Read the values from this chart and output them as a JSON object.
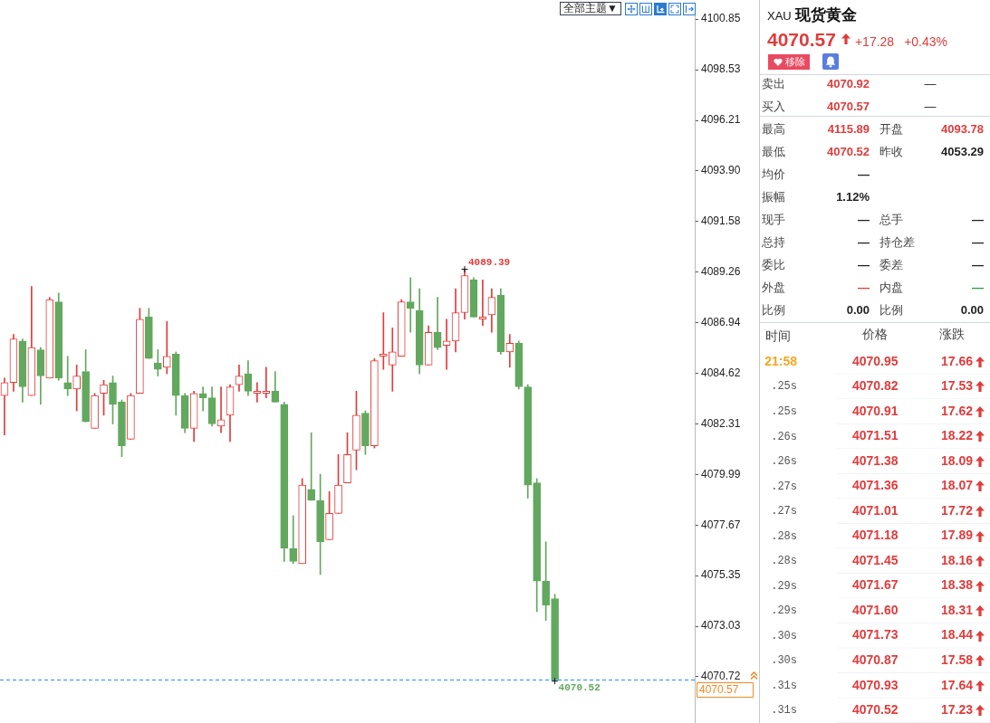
{
  "chart_data": [
    {
      "type": "candlestick",
      "categories": [
        null,
        null,
        null,
        null,
        null,
        null,
        null,
        null,
        null,
        null,
        null,
        null,
        null,
        null,
        null,
        null,
        null,
        null,
        null,
        null,
        null,
        null,
        null,
        null,
        null,
        null,
        null,
        null,
        null,
        null,
        null,
        null,
        null,
        null,
        null,
        null,
        null,
        null,
        null,
        null,
        null,
        null,
        null,
        null,
        null,
        null,
        null,
        null,
        null,
        null,
        null,
        null,
        null,
        null,
        null,
        null,
        null,
        null,
        null,
        null,
        null,
        null,
        null,
        null,
        null,
        null,
        null,
        null,
        null,
        null,
        null,
        null,
        null,
        null,
        null,
        null,
        null
      ],
      "ohlc": [
        [
          4083.6,
          4084.4,
          4081.8,
          4084.2
        ],
        [
          4084.2,
          4086.4,
          4083.8,
          4086.2
        ],
        [
          4086.1,
          4086.2,
          4083.3,
          4084.0
        ],
        [
          4083.6,
          4088.6,
          4083.6,
          4085.8
        ],
        [
          4085.7,
          4085.8,
          4083.2,
          4084.5
        ],
        [
          4084.4,
          4088.1,
          4084.4,
          4088.0
        ],
        [
          4087.9,
          4088.3,
          4084.3,
          4084.4
        ],
        [
          4084.2,
          4085.4,
          4083.6,
          4083.9
        ],
        [
          4083.9,
          4085.0,
          4082.9,
          4084.5
        ],
        [
          4084.7,
          4085.7,
          4082.4,
          4082.4
        ],
        [
          4082.1,
          4083.7,
          4082.1,
          4083.6
        ],
        [
          4083.7,
          4084.3,
          4082.7,
          4084.1
        ],
        [
          4084.2,
          4084.5,
          4082.3,
          4083.2
        ],
        [
          4083.3,
          4083.4,
          4080.8,
          4081.3
        ],
        [
          4081.6,
          4083.7,
          4081.6,
          4083.6
        ],
        [
          4083.7,
          4087.6,
          4083.7,
          4087.1
        ],
        [
          4087.2,
          4087.6,
          4085.3,
          4085.3
        ],
        [
          4085.1,
          4085.7,
          4084.5,
          4084.8
        ],
        [
          4084.9,
          4087.0,
          4084.6,
          4085.4
        ],
        [
          4085.5,
          4085.6,
          4082.7,
          4083.6
        ],
        [
          4083.6,
          4083.7,
          4081.9,
          4082.1
        ],
        [
          4082.1,
          4083.8,
          4081.5,
          4083.7
        ],
        [
          4083.7,
          4084.0,
          4082.9,
          4083.5
        ],
        [
          4083.5,
          4084.0,
          4082.2,
          4082.3
        ],
        [
          4082.2,
          4084.0,
          4081.9,
          4082.5
        ],
        [
          4082.7,
          4084.1,
          4081.5,
          4084.0
        ],
        [
          4084.1,
          4085.0,
          4083.8,
          4084.5
        ],
        [
          4084.6,
          4085.2,
          4083.6,
          4083.8
        ],
        [
          4083.7,
          4084.2,
          4083.3,
          4083.8
        ],
        [
          4083.7,
          4084.9,
          4083.5,
          4083.8
        ],
        [
          4083.8,
          4084.7,
          4083.3,
          4083.3
        ],
        [
          4083.2,
          4083.3,
          4076.0,
          4076.6
        ],
        [
          4076.6,
          4078.1,
          4075.9,
          4076.0
        ],
        [
          4075.9,
          4079.8,
          4075.9,
          4079.5
        ],
        [
          4079.3,
          4081.9,
          4078.8,
          4078.8
        ],
        [
          4078.8,
          4080.0,
          4075.4,
          4076.9
        ],
        [
          4077.0,
          4079.2,
          4077.0,
          4078.2
        ],
        [
          4078.2,
          4080.9,
          4078.2,
          4079.5
        ],
        [
          4079.6,
          4081.9,
          4079.6,
          4080.9
        ],
        [
          4081.1,
          4083.8,
          4080.2,
          4082.7
        ],
        [
          4082.8,
          4082.9,
          4080.9,
          4081.3
        ],
        [
          4081.3,
          4085.3,
          4081.2,
          4085.2
        ],
        [
          4085.4,
          4087.4,
          4084.8,
          4085.5
        ],
        [
          4085.0,
          4086.7,
          4083.8,
          4085.6
        ],
        [
          4085.4,
          4088.0,
          4085.4,
          4087.9
        ],
        [
          4087.9,
          4089.0,
          4086.5,
          4087.6
        ],
        [
          4087.5,
          4088.5,
          4084.6,
          4085.0
        ],
        [
          4085.0,
          4086.8,
          4085.0,
          4086.5
        ],
        [
          4086.5,
          4088.1,
          4085.7,
          4085.8
        ],
        [
          4085.9,
          4087.1,
          4084.8,
          4086.1
        ],
        [
          4086.1,
          4088.5,
          4085.6,
          4087.4
        ],
        [
          4087.4,
          4089.39,
          4087.1,
          4089.1
        ],
        [
          4088.9,
          4089.0,
          4087.2,
          4087.2
        ],
        [
          4087.1,
          4088.9,
          4086.8,
          4087.2
        ],
        [
          4087.3,
          4088.5,
          4086.5,
          4088.1
        ],
        [
          4088.2,
          4088.5,
          4085.5,
          4085.6
        ],
        [
          4085.6,
          4086.4,
          4084.9,
          4086.0
        ],
        [
          4086.0,
          4086.1,
          4083.9,
          4084.0
        ],
        [
          4084.0,
          4084.1,
          4078.9,
          4079.5
        ],
        [
          4079.6,
          4079.8,
          4073.7,
          4075.1
        ],
        [
          4075.1,
          4076.9,
          4073.3,
          4074.0
        ],
        [
          4074.3,
          4074.5,
          4070.52,
          4070.57
        ],
        null,
        null,
        null,
        null,
        null,
        null,
        null,
        null,
        null,
        null,
        null,
        null,
        null,
        null,
        null
      ],
      "ylim": [
        4068.6,
        4101.6
      ],
      "yticks": [
        4070.72,
        4073.03,
        4075.35,
        4077.67,
        4079.99,
        4082.31,
        4084.62,
        4086.94,
        4089.26,
        4091.58,
        {
          "value": 4093.9,
          "label": "4093.90"
        },
        4096.21,
        4098.53,
        4100.85
      ],
      "tick_labels": "y",
      "ref_lines": [
        {
          "axis": "y",
          "value": 4070.57,
          "label": "4070.57",
          "color": "#1e90ff",
          "line_style": "dashed"
        }
      ],
      "annotations": [
        "4089.39",
        "4070.52",
        "全部主题▼"
      ]
    },
    {
      "type": "other",
      "title": "XAU 现货黄金",
      "annotations": [
        "4070.57",
        "+17.28",
        "+0.43%",
        "移除",
        "卖出",
        "4070.92",
        "—",
        "买入",
        "4070.57",
        "—",
        "最高",
        "4115.89",
        "开盘",
        "4093.78",
        "最低",
        "4070.52",
        "昨收",
        "4053.29",
        "均价",
        "—",
        "振幅",
        "1.12%",
        "现手",
        "—",
        "总手",
        "—",
        "总持",
        "—",
        "持仓差",
        "—",
        "委比",
        "—",
        "委差",
        "—",
        "外盘",
        "—",
        "内盘",
        "—",
        "比例",
        "0.00",
        "比例",
        "0.00"
      ]
    },
    {
      "type": "heatmap",
      "ylabel": "时间",
      "categories": [
        "价格",
        "涨跌"
      ],
      "y_categories": [
        "21:58",
        ".25s",
        ".25s",
        ".26s",
        ".26s",
        ".27s",
        ".27s",
        ".28s",
        ".28s",
        ".29s",
        ".29s",
        ".30s",
        ".30s",
        ".31s",
        ".31s"
      ],
      "cells": [
        [
          4070.95,
          17.66
        ],
        [
          4070.82,
          17.53
        ],
        [
          4070.91,
          17.62
        ],
        [
          4071.51,
          18.22
        ],
        [
          4071.38,
          18.09
        ],
        [
          4071.36,
          18.07
        ],
        [
          4071.01,
          17.72
        ],
        [
          4071.18,
          17.89
        ],
        [
          4071.45,
          18.16
        ],
        [
          4071.67,
          18.38
        ],
        [
          4071.6,
          18.31
        ],
        [
          4071.73,
          18.44
        ],
        [
          4070.87,
          17.58
        ],
        [
          4070.93,
          17.64
        ],
        [
          4070.52,
          17.23
        ]
      ],
      "cell_labels": [
        [
          "4070.95",
          "17.66"
        ],
        [
          "4070.82",
          "17.53"
        ],
        [
          "4070.91",
          "17.62"
        ],
        [
          "4071.51",
          "18.22"
        ],
        [
          "4071.38",
          "18.09"
        ],
        [
          "4071.36",
          "18.07"
        ],
        [
          "4071.01",
          "17.72"
        ],
        [
          "4071.18",
          "17.89"
        ],
        [
          "4071.45",
          "18.16"
        ],
        [
          "4071.67",
          "18.38"
        ],
        [
          "4071.60",
          "18.31"
        ],
        [
          "4071.73",
          "18.44"
        ],
        [
          "4070.87",
          "17.58"
        ],
        [
          "4070.93",
          "17.64"
        ],
        [
          "4070.52",
          "17.23"
        ]
      ],
      "data_labels": true
    }
  ]
}
